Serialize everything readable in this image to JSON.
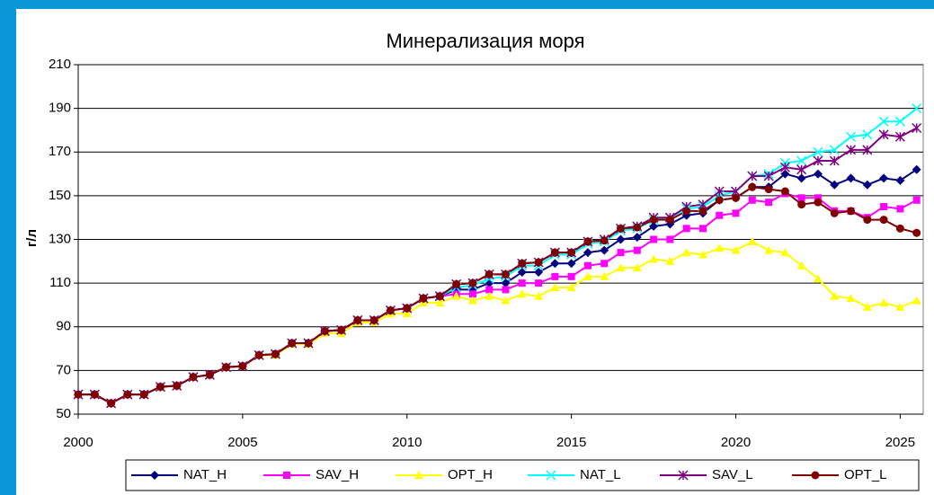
{
  "chart_data": {
    "type": "line",
    "title": "Минерализация моря",
    "y_label": "г/л",
    "x": [
      2000,
      2000.5,
      2001,
      2001.5,
      2002,
      2002.5,
      2003,
      2003.5,
      2004,
      2004.5,
      2005,
      2005.5,
      2006,
      2006.5,
      2007,
      2007.5,
      2008,
      2008.5,
      2009,
      2009.5,
      2010,
      2010.5,
      2011,
      2011.5,
      2012,
      2012.5,
      2013,
      2013.5,
      2014,
      2014.5,
      2015,
      2015.5,
      2016,
      2016.5,
      2017,
      2017.5,
      2018,
      2018.5,
      2019,
      2019.5,
      2020,
      2020.5,
      2021,
      2021.5,
      2022,
      2022.5,
      2023,
      2023.5,
      2024,
      2024.5,
      2025,
      2025.5
    ],
    "xlim": [
      2000,
      2025.7
    ],
    "xticks": [
      2000,
      2005,
      2010,
      2015,
      2020,
      2025
    ],
    "ylim": [
      50,
      210
    ],
    "yticks": [
      50,
      70,
      90,
      110,
      130,
      150,
      170,
      190,
      210
    ],
    "grid": true,
    "legend": "bottom",
    "series": [
      {
        "name": "NAT_H",
        "color": "#000080",
        "marker": "diamond",
        "values": [
          59,
          59,
          55,
          59,
          59,
          62.5,
          63,
          67,
          68,
          71.5,
          72,
          77,
          77.5,
          82.5,
          82.5,
          88,
          88.5,
          93,
          93,
          97.5,
          98.5,
          103,
          104,
          107,
          107,
          110,
          110,
          115,
          115,
          119,
          119,
          124,
          125,
          130,
          131,
          136,
          137,
          141,
          142,
          148,
          149,
          154,
          154,
          160,
          158,
          160,
          155,
          158,
          155,
          158,
          157,
          162
        ]
      },
      {
        "name": "SAV_H",
        "color": "#ff00ff",
        "marker": "square",
        "values": [
          59,
          59,
          55,
          59,
          59,
          62.5,
          63,
          67,
          68,
          71.5,
          72,
          77,
          77.5,
          82.5,
          82.5,
          88,
          88.5,
          93,
          93,
          97.5,
          98.5,
          103,
          104,
          105,
          105,
          107,
          107,
          110,
          110,
          113,
          113,
          118,
          119,
          124,
          125,
          130,
          130,
          135,
          135,
          141,
          142,
          148,
          147,
          151,
          149,
          149,
          143,
          143,
          140,
          145,
          144,
          148
        ]
      },
      {
        "name": "OPT_H",
        "color": "#ffff00",
        "marker": "triangle",
        "values": [
          59,
          59,
          55,
          59,
          59,
          62.5,
          63,
          67,
          68,
          71.5,
          72,
          77,
          77,
          82,
          82,
          87,
          87,
          92,
          92,
          96,
          96,
          101,
          101,
          104,
          102,
          104,
          102,
          105,
          104,
          108,
          108,
          113,
          113,
          117,
          117,
          121,
          120,
          124,
          123,
          126,
          125,
          129,
          125,
          124,
          118,
          112,
          104,
          103,
          99,
          101,
          99,
          102
        ]
      },
      {
        "name": "NAT_L",
        "color": "#00ffff",
        "marker": "x",
        "values": [
          59,
          59,
          55,
          59,
          59,
          62.5,
          63,
          67,
          68,
          71.5,
          72,
          77,
          77.5,
          82.5,
          82.5,
          88,
          88.5,
          93,
          93,
          97.5,
          98.5,
          103,
          104,
          108,
          109,
          112,
          113,
          118,
          118,
          123,
          123,
          128,
          129,
          134,
          135,
          139,
          140,
          144,
          145,
          150,
          152,
          159,
          160,
          165,
          166,
          170,
          171,
          177,
          178,
          184,
          184,
          190
        ]
      },
      {
        "name": "SAV_L",
        "color": "#800080",
        "marker": "star",
        "values": [
          59,
          59,
          55,
          59,
          59,
          62.5,
          63,
          67,
          68,
          71.5,
          72,
          77,
          77.5,
          82.5,
          82.5,
          88,
          88.5,
          93,
          93,
          97.5,
          98.5,
          103,
          104,
          109.5,
          110,
          114,
          114,
          119,
          119.5,
          124,
          124,
          129,
          130,
          135,
          136,
          140,
          140,
          145,
          146,
          152,
          152,
          159,
          159,
          163,
          162,
          166,
          166,
          171,
          171,
          178,
          177,
          181
        ]
      },
      {
        "name": "OPT_L",
        "color": "#800000",
        "marker": "circle",
        "values": [
          59,
          59,
          55,
          59,
          59,
          62.5,
          63,
          67,
          68,
          71.5,
          72,
          77,
          77.5,
          82.5,
          82.5,
          88,
          88.5,
          93,
          93,
          97.5,
          98.5,
          103,
          104,
          109.5,
          110,
          114,
          114,
          119,
          119.5,
          124,
          124,
          129,
          129.5,
          135,
          135.5,
          139,
          139,
          143,
          143,
          148,
          149,
          154,
          153,
          152,
          146,
          147,
          142,
          143,
          139,
          139,
          135,
          133
        ]
      }
    ]
  }
}
